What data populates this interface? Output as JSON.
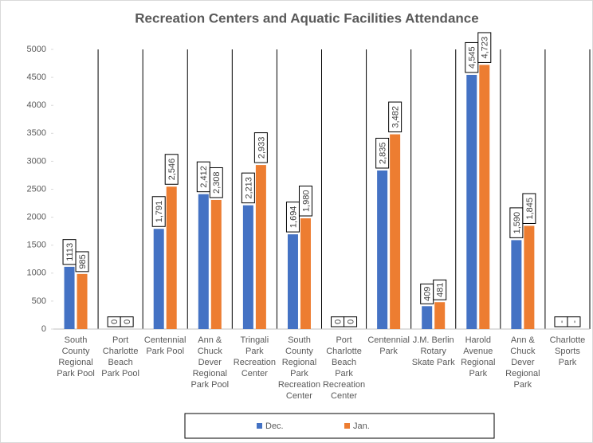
{
  "chart_data": {
    "type": "bar",
    "title": "Recreation Centers and Aquatic Facilities Attendance",
    "categories": [
      "South County Regional Park Pool",
      "Port Charlotte Beach Park Pool",
      "Centennial Park Pool",
      "Ann & Chuck Dever Regional Park Pool",
      "Tringali Park Recreation Center",
      "South County Regional Park Recreation Center",
      "Port Charlotte Beach Park Recreation Center",
      "Centennial Park",
      "J.M. Berlin Rotary Skate Park",
      "Harold Avenue Regional Park",
      "Ann & Chuck Dever Regional Park",
      "Charlotte Sports Park"
    ],
    "series": [
      {
        "name": "Dec.",
        "color": "#4472c4",
        "values": [
          1113,
          0,
          1791,
          2412,
          2213,
          1694,
          0,
          2835,
          409,
          4545,
          1590,
          null
        ],
        "value_labels": [
          "1113",
          "0",
          "1,791",
          "2,412",
          "2,213",
          "1,694",
          "0",
          "2,835",
          "409",
          "4,545",
          "1,590",
          "-"
        ]
      },
      {
        "name": "Jan.",
        "color": "#ed7d31",
        "values": [
          985,
          0,
          2546,
          2308,
          2933,
          1980,
          0,
          3482,
          481,
          4723,
          1845,
          null
        ],
        "value_labels": [
          "985",
          "0",
          "2,546",
          "2,308",
          "2,933",
          "1,980",
          "0",
          "3,482",
          "481",
          "4,723",
          "1,845",
          "-"
        ]
      }
    ],
    "ylim": [
      0,
      5000
    ],
    "yticks": [
      0,
      500,
      1000,
      1500,
      2000,
      2500,
      3000,
      3500,
      4000,
      4500,
      5000
    ],
    "legend": "bottom"
  }
}
